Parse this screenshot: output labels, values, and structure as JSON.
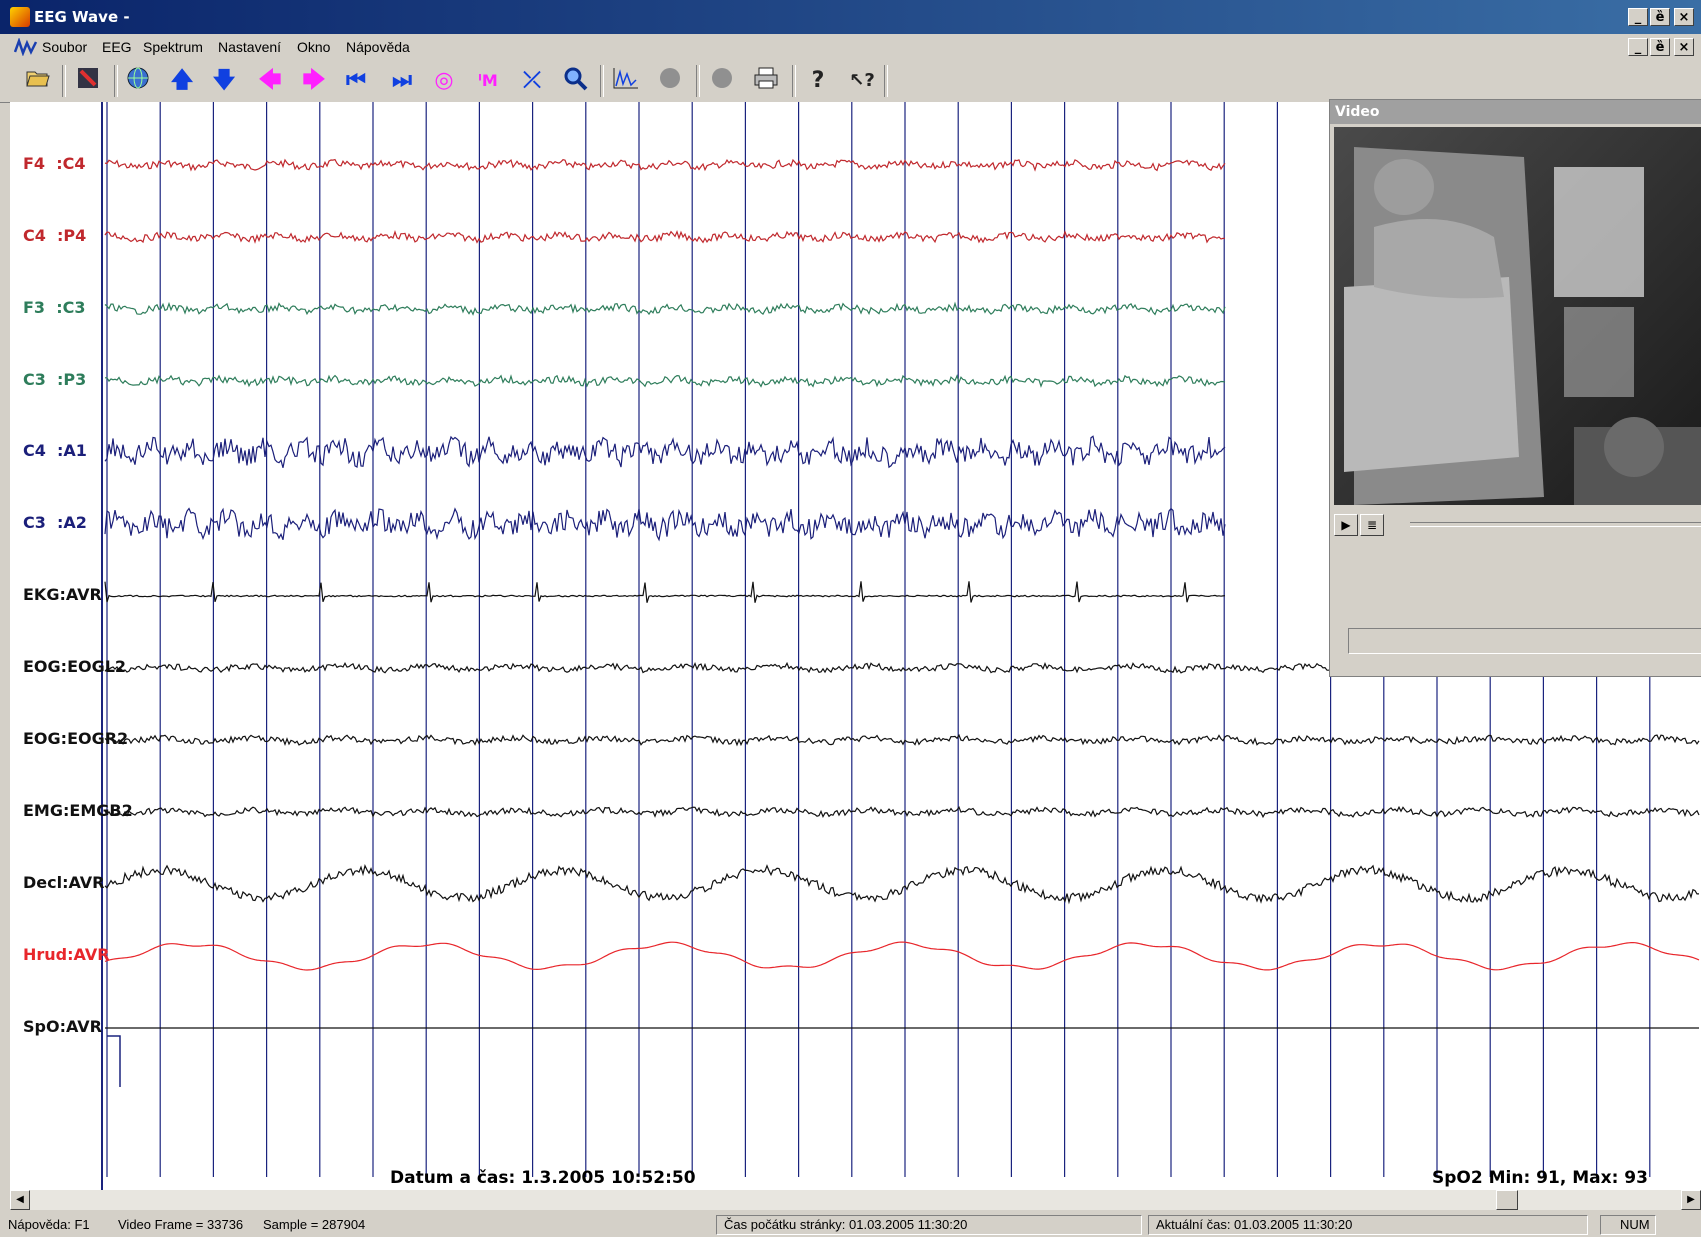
{
  "window": {
    "title": "EEG Wave -",
    "minimize": "_",
    "restore": "ȅ",
    "close": "×"
  },
  "menu": [
    "Soubor",
    "EEG",
    "Spektrum",
    "Nastavení",
    "Okno",
    "Nápověda"
  ],
  "toolbar": {
    "icons": [
      "open-folder-icon",
      "montage-edit-icon",
      "globe-icon",
      "arrow-up-icon",
      "arrow-down-icon",
      "arrow-left-icon",
      "arrow-right-icon",
      "jump-start-icon",
      "jump-end-icon",
      "spiral-icon",
      "marker-icon",
      "axis-scale-icon",
      "zoom-icon",
      "spectrum-icon",
      "record-gray-icon",
      "stop-gray-icon",
      "printer-icon",
      "help-icon",
      "context-help-icon"
    ]
  },
  "channels": [
    {
      "label": "F4  :C4",
      "color": "#c0282d"
    },
    {
      "label": "C4  :P4",
      "color": "#c0282d"
    },
    {
      "label": "F3  :C3",
      "color": "#2e7d5b"
    },
    {
      "label": "C3  :P3",
      "color": "#2e7d5b"
    },
    {
      "label": "C4  :A1",
      "color": "#1b1f7a"
    },
    {
      "label": "C3  :A2",
      "color": "#1b1f7a"
    },
    {
      "label": "EKG:AVR",
      "color": "#111111"
    },
    {
      "label": "EOG:EOGL2",
      "color": "#111111"
    },
    {
      "label": "EOG:EOGR2",
      "color": "#111111"
    },
    {
      "label": "EMG:EMGB2",
      "color": "#111111"
    },
    {
      "label": "Decl:AVR",
      "color": "#111111"
    },
    {
      "label": "Hrud:AVR",
      "color": "#e8262b"
    },
    {
      "label": "SpO:AVR",
      "color": "#111111"
    }
  ],
  "grid_color": "#1a237e",
  "datetime": "Datum a čas: 1.3.2005 10:52:50",
  "spo2": "SpO2 Min: 91, Max: 93",
  "video": {
    "title": "Video",
    "play": "▶",
    "list": "≣"
  },
  "status": {
    "help": "Nápověda: F1",
    "video_frame": "Video Frame = 33736",
    "sample": "Sample = 287904",
    "page_start": "Čas počátku stránky: 01.03.2005 11:30:20",
    "current_time": "Aktuální čas: 01.03.2005 11:30:20",
    "num": "NUM"
  }
}
